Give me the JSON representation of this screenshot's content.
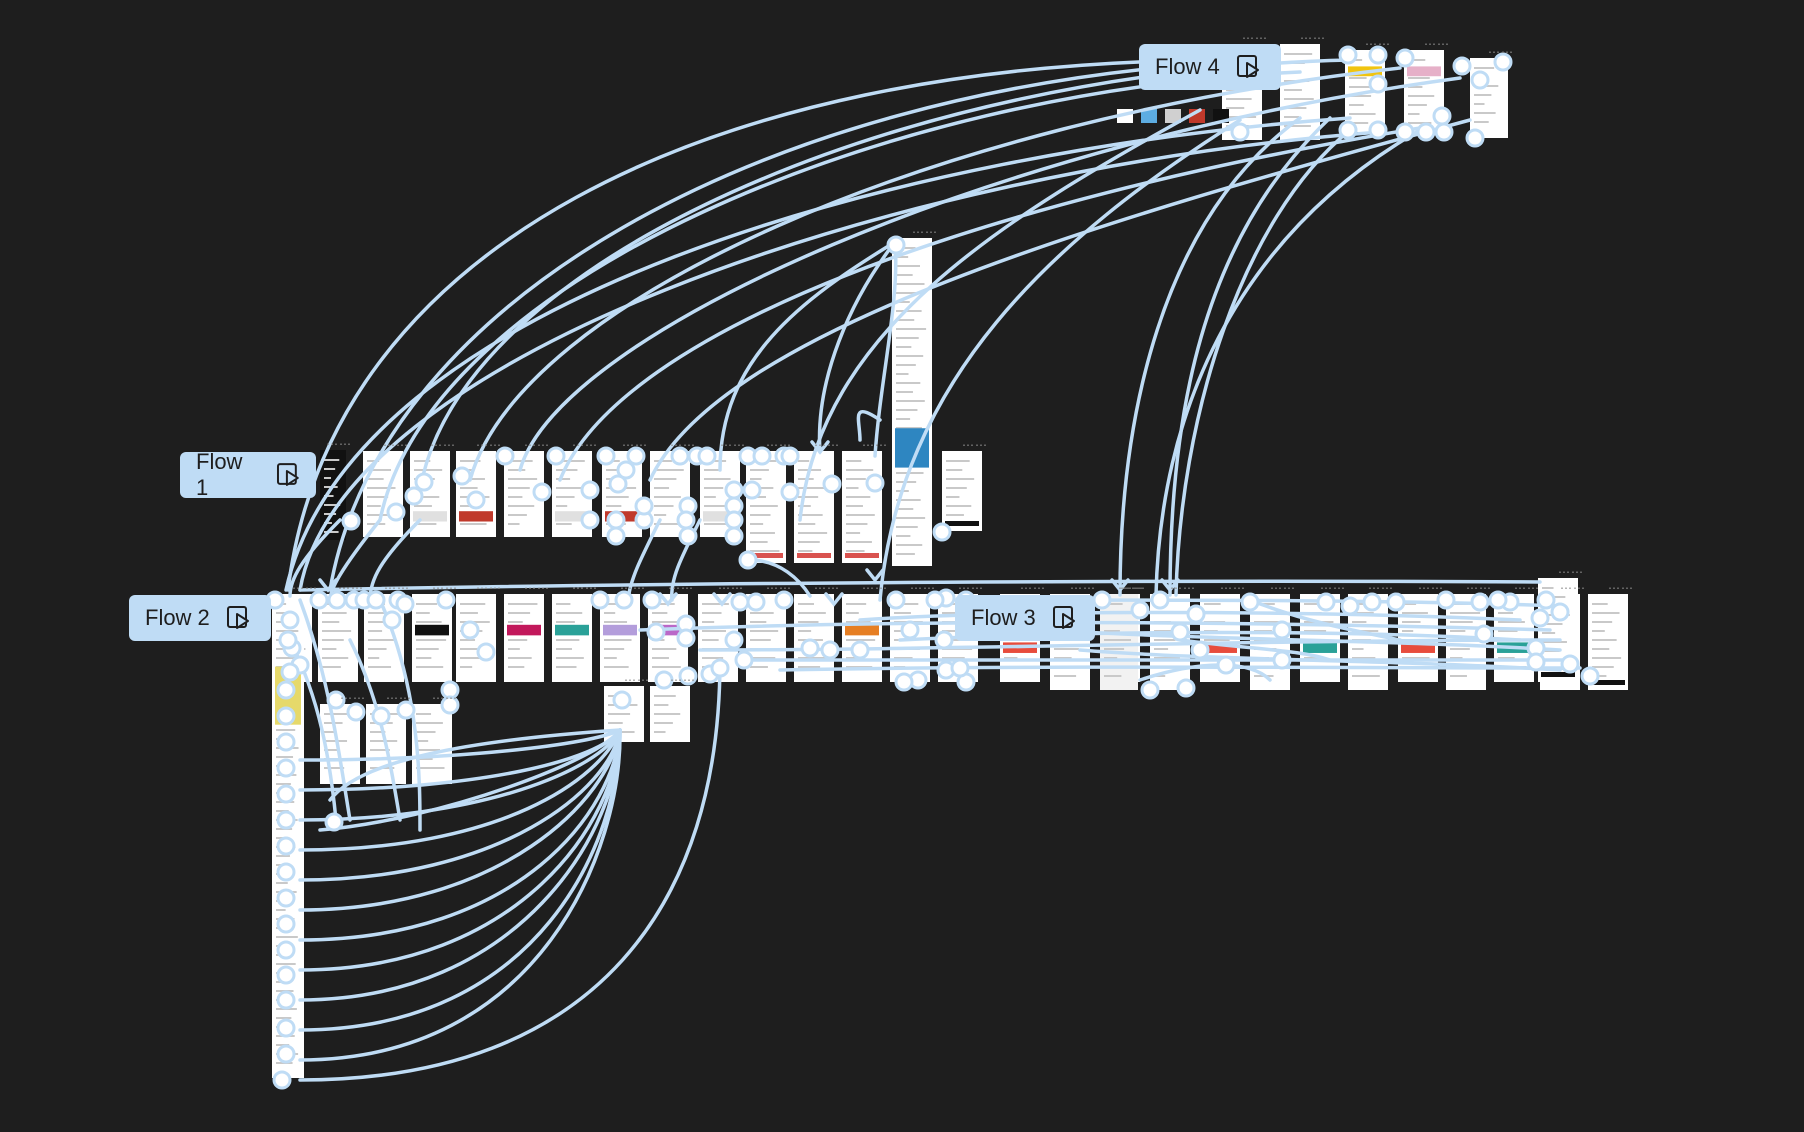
{
  "flows": [
    {
      "id": "flow1",
      "label": "Flow 1"
    },
    {
      "id": "flow2",
      "label": "Flow 2"
    },
    {
      "id": "flow3",
      "label": "Flow 3"
    },
    {
      "id": "flow4",
      "label": "Flow 4"
    }
  ],
  "frame_menu_glyph": "…",
  "colors": {
    "canvas_bg": "#1e1e1e",
    "connector": "#bfdcf5",
    "frame_bg": "#ffffff"
  },
  "icons": {
    "flow_play": "play-prototype-icon",
    "frame_menu": "ellipsis-icon"
  }
}
